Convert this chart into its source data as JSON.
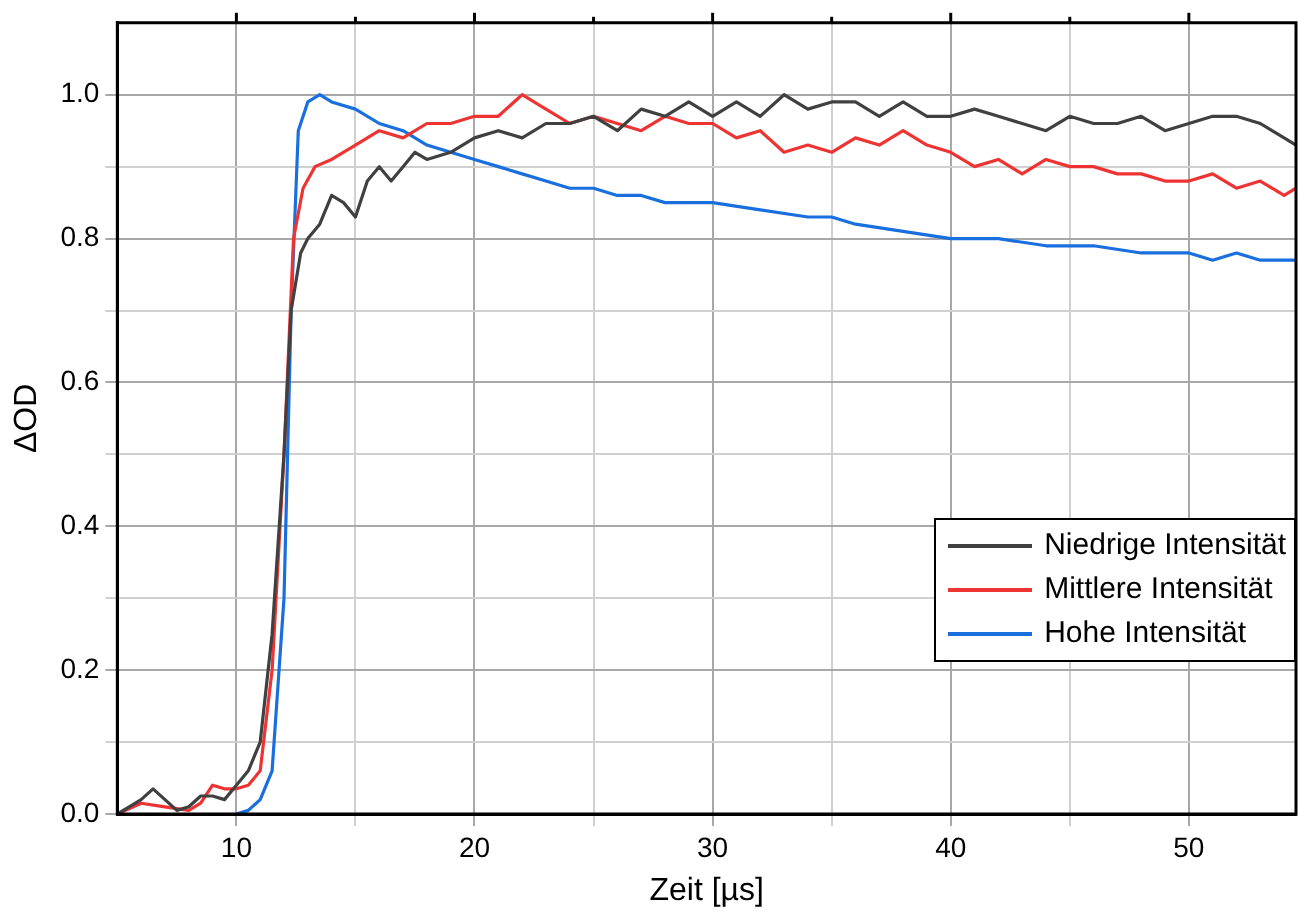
{
  "chart_data": {
    "type": "line",
    "xlabel": "Zeit [µs]",
    "ylabel": "ΔOD",
    "xlim": [
      5,
      54.5
    ],
    "ylim": [
      0,
      1.1
    ],
    "xticks": [
      10,
      {
        "value": 15,
        "label": null
      },
      20,
      {
        "value": 25,
        "label": null
      },
      30,
      {
        "value": 35,
        "label": null
      },
      40,
      {
        "value": 45,
        "label": null
      },
      50
    ],
    "yticks": [
      {
        "value": 0,
        "label": "0.0"
      },
      {
        "value": 0.1,
        "label": null
      },
      {
        "value": 0.2,
        "label": "0.2"
      },
      {
        "value": 0.3,
        "label": null
      },
      {
        "value": 0.4,
        "label": "0.4"
      },
      {
        "value": 0.5,
        "label": null
      },
      {
        "value": 0.6,
        "label": "0.6"
      },
      {
        "value": 0.7,
        "label": null
      },
      {
        "value": 0.8,
        "label": "0.8"
      },
      {
        "value": 0.9,
        "label": null
      },
      {
        "value": 1.0,
        "label": "1.0"
      }
    ],
    "grid": true,
    "legend": "right",
    "marker": "none",
    "line_style": "solid",
    "series": [
      {
        "name": "Niedrige Intensität",
        "color": "#404040",
        "x": [
          5,
          5.5,
          6,
          6.5,
          7,
          7.5,
          8,
          8.5,
          9,
          9.5,
          10,
          10.5,
          11,
          11.5,
          12,
          12.3,
          12.7,
          13,
          13.5,
          14,
          14.5,
          15,
          15.5,
          16,
          16.5,
          17,
          17.5,
          18,
          19,
          20,
          21,
          22,
          23,
          24,
          25,
          26,
          27,
          28,
          29,
          30,
          31,
          32,
          33,
          34,
          35,
          36,
          37,
          38,
          39,
          40,
          41,
          42,
          43,
          44,
          45,
          46,
          47,
          48,
          49,
          50,
          51,
          52,
          53,
          54,
          54.5
        ],
        "values": [
          0,
          0.01,
          0.02,
          0.035,
          0.02,
          0.005,
          0.01,
          0.025,
          0.025,
          0.02,
          0.04,
          0.06,
          0.1,
          0.25,
          0.5,
          0.7,
          0.78,
          0.8,
          0.82,
          0.86,
          0.85,
          0.83,
          0.88,
          0.9,
          0.88,
          0.9,
          0.92,
          0.91,
          0.92,
          0.94,
          0.95,
          0.94,
          0.96,
          0.96,
          0.97,
          0.95,
          0.98,
          0.97,
          0.99,
          0.97,
          0.99,
          0.97,
          1.0,
          0.98,
          0.99,
          0.99,
          0.97,
          0.99,
          0.97,
          0.97,
          0.98,
          0.97,
          0.96,
          0.95,
          0.97,
          0.96,
          0.96,
          0.97,
          0.95,
          0.96,
          0.97,
          0.97,
          0.96,
          0.94,
          0.93
        ]
      },
      {
        "name": "Mittlere Intensität",
        "color": "#ee3333",
        "x": [
          5,
          6,
          7,
          8,
          8.5,
          9,
          9.5,
          10,
          10.5,
          11,
          11.5,
          12,
          12.4,
          12.8,
          13.3,
          14,
          15,
          16,
          17,
          18,
          19,
          20,
          21,
          22,
          23,
          24,
          25,
          26,
          27,
          28,
          29,
          30,
          31,
          32,
          33,
          34,
          35,
          36,
          37,
          38,
          39,
          40,
          41,
          42,
          43,
          44,
          45,
          46,
          47,
          48,
          49,
          50,
          51,
          52,
          53,
          54,
          54.5
        ],
        "values": [
          0,
          0.015,
          0.01,
          0.005,
          0.015,
          0.04,
          0.035,
          0.035,
          0.04,
          0.06,
          0.2,
          0.5,
          0.8,
          0.87,
          0.9,
          0.91,
          0.93,
          0.95,
          0.94,
          0.96,
          0.96,
          0.97,
          0.97,
          1.0,
          0.98,
          0.96,
          0.97,
          0.96,
          0.95,
          0.97,
          0.96,
          0.96,
          0.94,
          0.95,
          0.92,
          0.93,
          0.92,
          0.94,
          0.93,
          0.95,
          0.93,
          0.92,
          0.9,
          0.91,
          0.89,
          0.91,
          0.9,
          0.9,
          0.89,
          0.89,
          0.88,
          0.88,
          0.89,
          0.87,
          0.88,
          0.86,
          0.87
        ]
      },
      {
        "name": "Hohe Intensität",
        "color": "#1a6fdf",
        "x": [
          10,
          10.5,
          11,
          11.5,
          12,
          12.3,
          12.6,
          13,
          13.5,
          14,
          15,
          16,
          17,
          18,
          19,
          20,
          21,
          22,
          23,
          24,
          25,
          26,
          27,
          28,
          30,
          32,
          34,
          35,
          36,
          38,
          40,
          42,
          44,
          46,
          48,
          50,
          51,
          52,
          53,
          54.5
        ],
        "values": [
          0,
          0.005,
          0.02,
          0.06,
          0.3,
          0.7,
          0.95,
          0.99,
          1.0,
          0.99,
          0.98,
          0.96,
          0.95,
          0.93,
          0.92,
          0.91,
          0.9,
          0.89,
          0.88,
          0.87,
          0.87,
          0.86,
          0.86,
          0.85,
          0.85,
          0.84,
          0.83,
          0.83,
          0.82,
          0.81,
          0.8,
          0.8,
          0.79,
          0.79,
          0.78,
          0.78,
          0.77,
          0.78,
          0.77,
          0.77
        ]
      }
    ]
  }
}
